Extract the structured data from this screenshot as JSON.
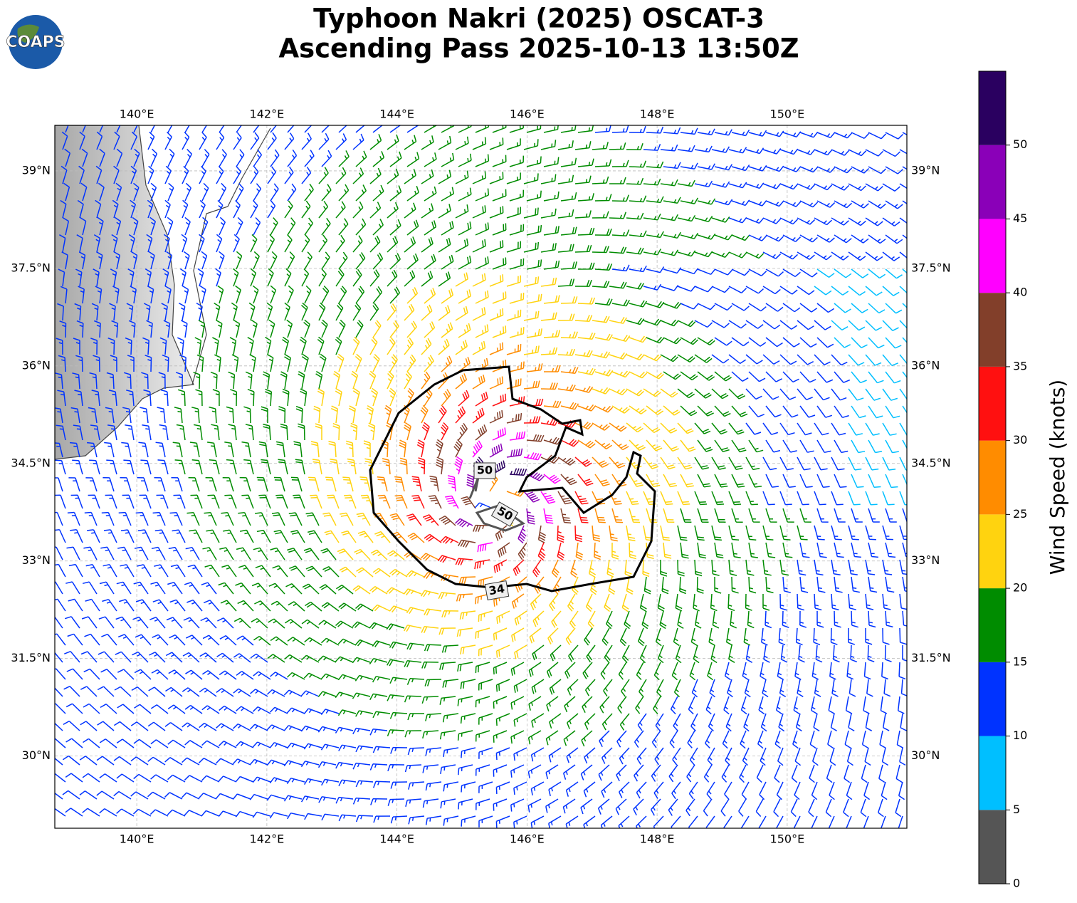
{
  "header": {
    "logo": "COAPS",
    "title": [
      "Typhoon Nakri (2025) OSCAT-3",
      "Ascending Pass 2025-10-13 13:50Z"
    ]
  },
  "chart_data": {
    "type": "barb-map",
    "xlim": [
      138.74,
      151.84
    ],
    "ylim": [
      28.89,
      39.7
    ],
    "xticks": [
      {
        "value": 140,
        "label": "140°E"
      },
      {
        "value": 142,
        "label": "142°E"
      },
      {
        "value": 144,
        "label": "144°E"
      },
      {
        "value": 146,
        "label": "146°E"
      },
      {
        "value": 148,
        "label": "148°E"
      },
      {
        "value": 150,
        "label": "150°E"
      }
    ],
    "yticks": [
      {
        "value": 30,
        "label": "30°N"
      },
      {
        "value": 31.5,
        "label": "31.5°N"
      },
      {
        "value": 33,
        "label": "33°N"
      },
      {
        "value": 34.5,
        "label": "34.5°N"
      },
      {
        "value": 36,
        "label": "36°N"
      },
      {
        "value": 37.5,
        "label": "37.5°N"
      },
      {
        "value": 39,
        "label": "39°N"
      }
    ],
    "grid": true,
    "contour_labels": [
      "50",
      "50",
      "34"
    ],
    "colorbar": {
      "label": "Wind Speed (knots)",
      "bounds": [
        0,
        5,
        10,
        15,
        20,
        25,
        30,
        35,
        40,
        45,
        50,
        55
      ],
      "ticks": [
        0,
        5,
        10,
        15,
        20,
        25,
        30,
        35,
        40,
        45,
        50
      ],
      "colors": [
        "#555555",
        "#00bfff",
        "#0033ff",
        "#008c00",
        "#ffd30f",
        "#ff8c00",
        "#ff1010",
        "#823f2a",
        "#ff00ff",
        "#8a00b8",
        "#2a0060"
      ]
    }
  }
}
